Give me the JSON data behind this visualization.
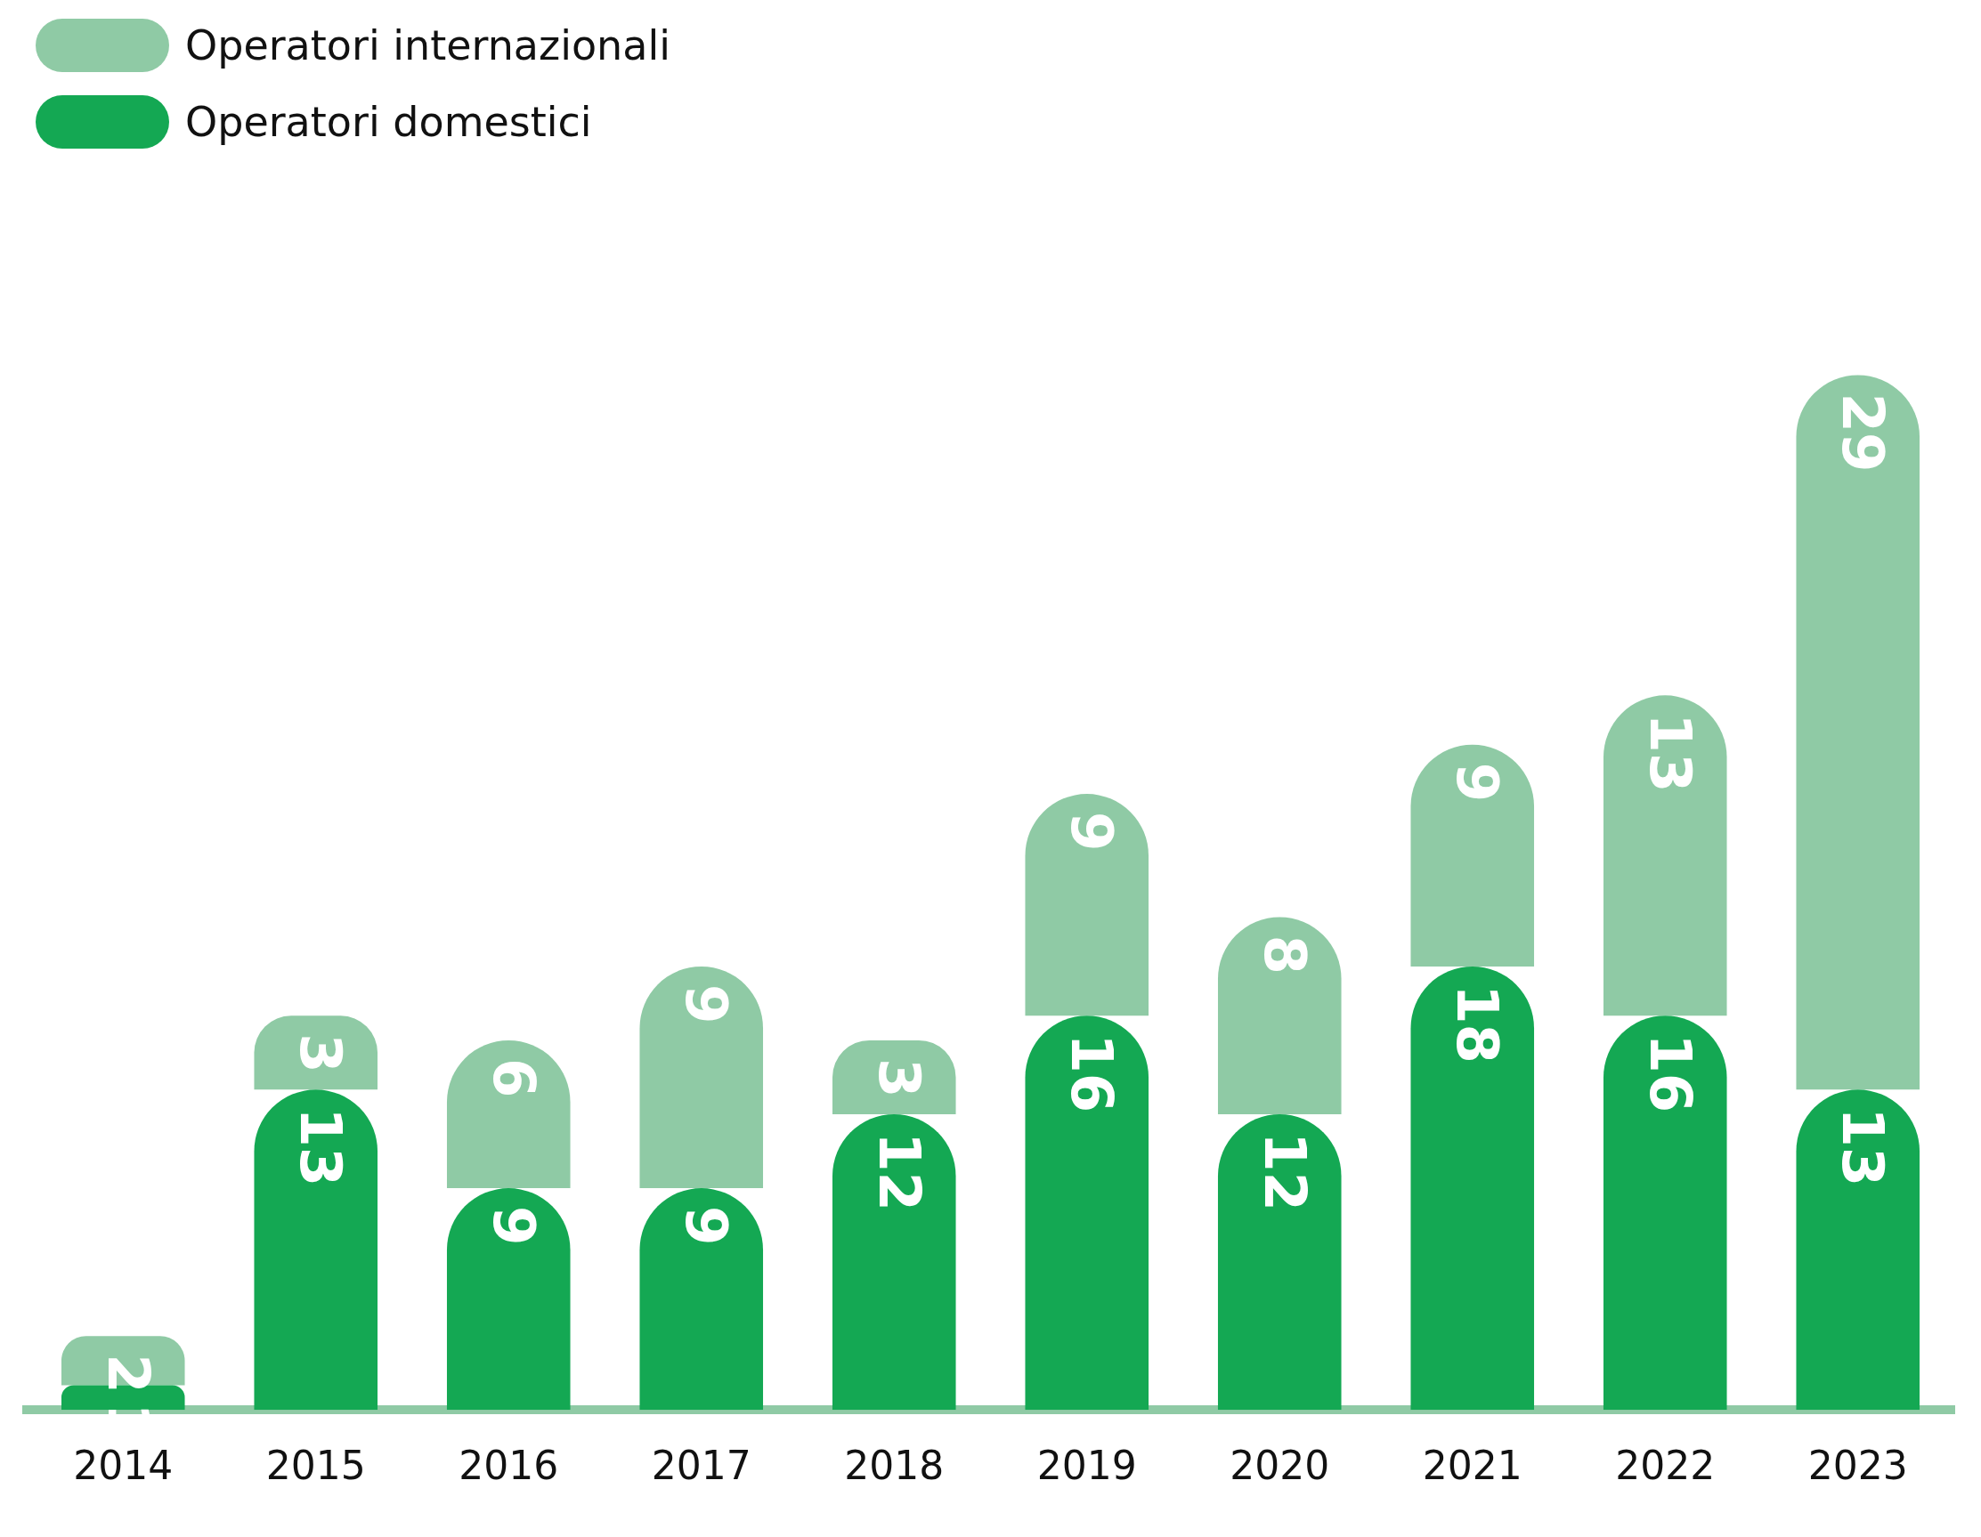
{
  "chart_data": {
    "type": "bar",
    "stacked": true,
    "data_labels": true,
    "legend": "top left",
    "grid": false,
    "categories": [
      "2014",
      "2015",
      "2016",
      "2017",
      "2018",
      "2019",
      "2020",
      "2021",
      "2022",
      "2023"
    ],
    "series": [
      {
        "name": "Operatori domestici",
        "color": "#14a853",
        "values": [
          1,
          13,
          9,
          9,
          12,
          16,
          12,
          18,
          16,
          13
        ]
      },
      {
        "name": "Operatori internazionali",
        "color": "#8fcaa5",
        "values": [
          2,
          3,
          6,
          9,
          3,
          9,
          8,
          9,
          13,
          29
        ]
      }
    ]
  }
}
